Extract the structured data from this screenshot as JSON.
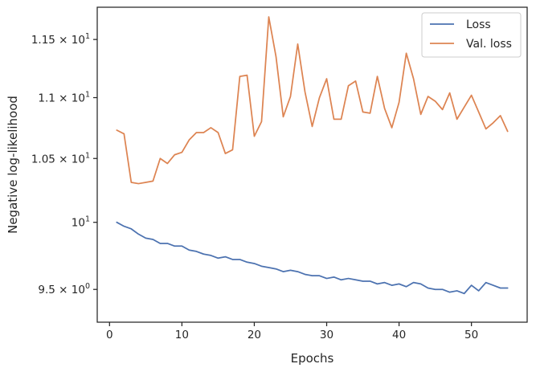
{
  "chart_data": {
    "type": "line",
    "title": "",
    "xlabel": "Epochs",
    "ylabel": "Negative log-likelihood",
    "xlim": [
      -1.7,
      57.7
    ],
    "ylim": [
      9.265,
      11.787
    ],
    "y_scale": "log",
    "grid": false,
    "legend_position": "top-right",
    "x_ticks": [
      0,
      10,
      20,
      30,
      40,
      50
    ],
    "x_tick_labels": [
      "0",
      "10",
      "20",
      "30",
      "40",
      "50"
    ],
    "y_ticks": [
      9.5,
      10,
      10.5,
      11,
      11.5
    ],
    "y_tick_labels": [
      {
        "mantissa": "9.5",
        "times": "×",
        "base": "10",
        "exp": "0"
      },
      {
        "mantissa": "",
        "times": "",
        "base": "10",
        "exp": "1"
      },
      {
        "mantissa": "1.05",
        "times": "×",
        "base": "10",
        "exp": "1"
      },
      {
        "mantissa": "1.1",
        "times": "×",
        "base": "10",
        "exp": "1"
      },
      {
        "mantissa": "1.15",
        "times": "×",
        "base": "10",
        "exp": "1"
      }
    ],
    "x": [
      1,
      2,
      3,
      4,
      5,
      6,
      7,
      8,
      9,
      10,
      11,
      12,
      13,
      14,
      15,
      16,
      17,
      18,
      19,
      20,
      21,
      22,
      23,
      24,
      25,
      26,
      27,
      28,
      29,
      30,
      31,
      32,
      33,
      34,
      35,
      36,
      37,
      38,
      39,
      40,
      41,
      42,
      43,
      44,
      45,
      46,
      47,
      48,
      49,
      50,
      51,
      52,
      53,
      54,
      55
    ],
    "series": [
      {
        "name": "Loss",
        "color": "#4c72b0",
        "values": [
          10.0,
          9.97,
          9.95,
          9.91,
          9.88,
          9.87,
          9.84,
          9.84,
          9.82,
          9.82,
          9.79,
          9.78,
          9.76,
          9.75,
          9.73,
          9.74,
          9.72,
          9.72,
          9.7,
          9.69,
          9.67,
          9.66,
          9.65,
          9.63,
          9.64,
          9.63,
          9.61,
          9.6,
          9.6,
          9.58,
          9.59,
          9.57,
          9.58,
          9.57,
          9.56,
          9.56,
          9.54,
          9.55,
          9.53,
          9.54,
          9.52,
          9.55,
          9.54,
          9.51,
          9.5,
          9.5,
          9.48,
          9.49,
          9.47,
          9.53,
          9.49,
          9.55,
          9.53,
          9.51,
          9.51
        ]
      },
      {
        "name": "Val. loss",
        "color": "#dd8452",
        "values": [
          10.73,
          10.7,
          10.31,
          10.3,
          10.31,
          10.32,
          10.5,
          10.46,
          10.53,
          10.55,
          10.65,
          10.71,
          10.71,
          10.75,
          10.71,
          10.54,
          10.57,
          11.18,
          11.19,
          10.68,
          10.8,
          11.7,
          11.35,
          10.84,
          11.01,
          11.46,
          11.05,
          10.76,
          11.0,
          11.16,
          10.82,
          10.82,
          11.1,
          11.14,
          10.88,
          10.87,
          11.18,
          10.91,
          10.75,
          10.96,
          11.38,
          11.16,
          10.86,
          11.01,
          10.97,
          10.9,
          11.04,
          10.82,
          10.92,
          11.02,
          10.88,
          10.74,
          10.79,
          10.85,
          10.72
        ]
      }
    ]
  }
}
